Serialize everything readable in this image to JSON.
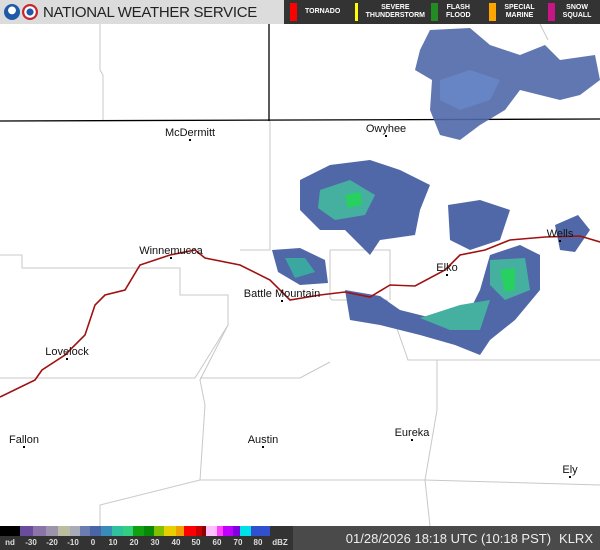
{
  "header": {
    "title": "NATIONAL WEATHER SERVICE",
    "logos": [
      "noaa-logo",
      "nws-logo"
    ]
  },
  "warnings": [
    {
      "label": "TORNADO",
      "color": "#ff0000"
    },
    {
      "label": "SEVERE\nTHUNDERSTORM",
      "color": "#ffff00"
    },
    {
      "label": "FLASH\nFLOOD",
      "color": "#228b22"
    },
    {
      "label": "SPECIAL\nMARINE",
      "color": "#ffa500"
    },
    {
      "label": "SNOW\nSQUALL",
      "color": "#c71585"
    }
  ],
  "cities": [
    "McDermitt",
    "Owyhee",
    "Winnemucca",
    "Battle Mountain",
    "Elko",
    "Wells",
    "Lovelock",
    "Fallon",
    "Austin",
    "Eureka",
    "Ely"
  ],
  "legend": {
    "ticks": [
      "nd",
      "-30",
      "-20",
      "-10",
      "0",
      "10",
      "20",
      "30",
      "40",
      "50",
      "60",
      "70",
      "80",
      "dBZ"
    ],
    "colors": [
      "#000000",
      "#6a4c9c",
      "#8a74a8",
      "#9c94ac",
      "#bcbca0",
      "#a8acb8",
      "#6a7cb0",
      "#4a64a8",
      "#3a8cb8",
      "#30c0a0",
      "#30d080",
      "#10a010",
      "#088808",
      "#80c000",
      "#e8d000",
      "#f0a000",
      "#ff0000",
      "#c80000",
      "#900000",
      "#ffc0ff",
      "#ff40ff",
      "#c000ff",
      "#8000e0",
      "#00e0e8",
      "#3050d0"
    ]
  },
  "timestamp": "01/28/2026 18:18 UTC (10:18 PST)",
  "station": "KLRX"
}
